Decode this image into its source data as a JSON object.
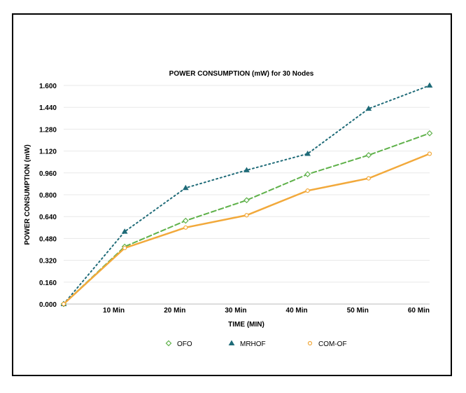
{
  "chart_data": {
    "type": "line",
    "title": "POWER CONSUMPTION (mW) for 30 Nodes",
    "xlabel": "TIME (MIN)",
    "ylabel": "POWER CONSUMPTION (mW)",
    "x": [
      0,
      10,
      20,
      30,
      40,
      50,
      60
    ],
    "x_tick_labels": [
      "",
      "10 Min",
      "20 Min",
      "30 Min",
      "40 Min",
      "50 Min",
      "60 Min"
    ],
    "ylim": [
      0,
      1.6
    ],
    "y_ticks": [
      0.0,
      0.16,
      0.32,
      0.48,
      0.64,
      0.8,
      0.96,
      1.12,
      1.28,
      1.44,
      1.6
    ],
    "y_tick_labels": [
      "0.000",
      "0.160",
      "0.320",
      "0.480",
      "0.640",
      "0.800",
      "0.960",
      "1.120",
      "1.280",
      "1.440",
      "1.600"
    ],
    "grid": true,
    "legend_position": "bottom",
    "series": [
      {
        "name": "OFO",
        "color": "#5fb14a",
        "line_style": "dashed",
        "marker": "diamond",
        "values": [
          0.0,
          0.42,
          0.61,
          0.76,
          0.95,
          1.09,
          1.25
        ]
      },
      {
        "name": "MRHOF",
        "color": "#1f6b78",
        "line_style": "dotted",
        "marker": "triangle",
        "values": [
          0.0,
          0.53,
          0.85,
          0.98,
          1.1,
          1.43,
          1.6
        ]
      },
      {
        "name": "COM-OF",
        "color": "#f2a93b",
        "line_style": "solid",
        "marker": "circle",
        "values": [
          0.0,
          0.41,
          0.56,
          0.65,
          0.83,
          0.92,
          1.1
        ]
      }
    ]
  }
}
